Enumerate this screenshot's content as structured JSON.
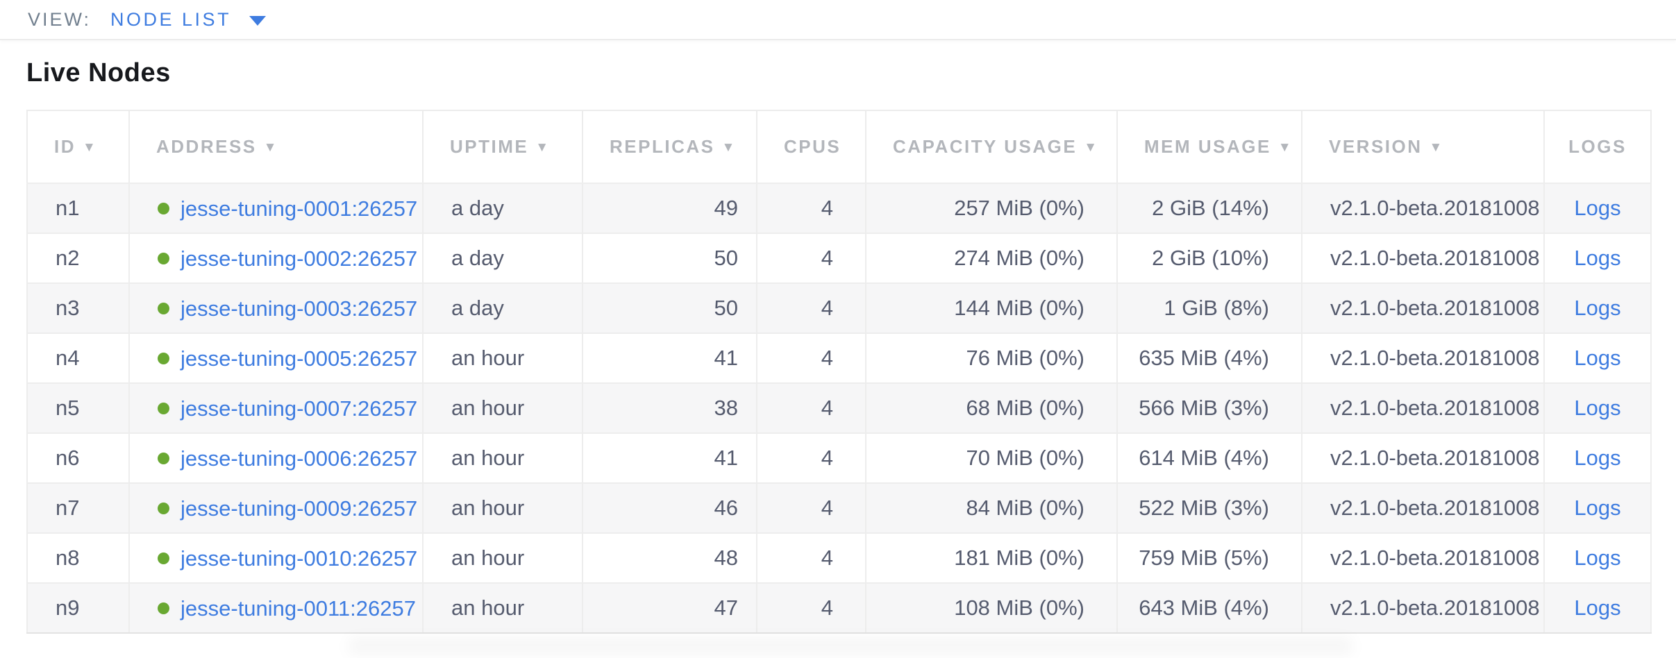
{
  "view_bar": {
    "label": "VIEW:",
    "selected": "NODE LIST"
  },
  "page": {
    "title": "Live Nodes"
  },
  "table": {
    "sort_indicator": "▼",
    "columns": [
      {
        "label": "ID",
        "sorted": true,
        "align": "left"
      },
      {
        "label": "ADDRESS",
        "sorted": true,
        "align": "left"
      },
      {
        "label": "UPTIME",
        "sorted": true,
        "align": "left"
      },
      {
        "label": "REPLICAS",
        "sorted": true,
        "align": "left"
      },
      {
        "label": "CPUS",
        "sorted": false,
        "align": "left"
      },
      {
        "label": "CAPACITY USAGE",
        "sorted": true,
        "align": "left"
      },
      {
        "label": "MEM USAGE",
        "sorted": true,
        "align": "left"
      },
      {
        "label": "VERSION",
        "sorted": true,
        "align": "left"
      },
      {
        "label": "LOGS",
        "sorted": false,
        "align": "center"
      }
    ],
    "rows": [
      {
        "id": "n1",
        "address": "jesse-tuning-0001:26257",
        "uptime": "a day",
        "replicas": "49",
        "cpus": "4",
        "capacity_usage": "257 MiB (0%)",
        "mem_usage": "2 GiB (14%)",
        "version": "v2.1.0-beta.20181008",
        "logs": "Logs"
      },
      {
        "id": "n2",
        "address": "jesse-tuning-0002:26257",
        "uptime": "a day",
        "replicas": "50",
        "cpus": "4",
        "capacity_usage": "274 MiB (0%)",
        "mem_usage": "2 GiB (10%)",
        "version": "v2.1.0-beta.20181008",
        "logs": "Logs"
      },
      {
        "id": "n3",
        "address": "jesse-tuning-0003:26257",
        "uptime": "a day",
        "replicas": "50",
        "cpus": "4",
        "capacity_usage": "144 MiB (0%)",
        "mem_usage": "1 GiB (8%)",
        "version": "v2.1.0-beta.20181008",
        "logs": "Logs"
      },
      {
        "id": "n4",
        "address": "jesse-tuning-0005:26257",
        "uptime": "an hour",
        "replicas": "41",
        "cpus": "4",
        "capacity_usage": "76 MiB (0%)",
        "mem_usage": "635 MiB (4%)",
        "version": "v2.1.0-beta.20181008",
        "logs": "Logs"
      },
      {
        "id": "n5",
        "address": "jesse-tuning-0007:26257",
        "uptime": "an hour",
        "replicas": "38",
        "cpus": "4",
        "capacity_usage": "68 MiB (0%)",
        "mem_usage": "566 MiB (3%)",
        "version": "v2.1.0-beta.20181008",
        "logs": "Logs"
      },
      {
        "id": "n6",
        "address": "jesse-tuning-0006:26257",
        "uptime": "an hour",
        "replicas": "41",
        "cpus": "4",
        "capacity_usage": "70 MiB (0%)",
        "mem_usage": "614 MiB (4%)",
        "version": "v2.1.0-beta.20181008",
        "logs": "Logs"
      },
      {
        "id": "n7",
        "address": "jesse-tuning-0009:26257",
        "uptime": "an hour",
        "replicas": "46",
        "cpus": "4",
        "capacity_usage": "84 MiB (0%)",
        "mem_usage": "522 MiB (3%)",
        "version": "v2.1.0-beta.20181008",
        "logs": "Logs"
      },
      {
        "id": "n8",
        "address": "jesse-tuning-0010:26257",
        "uptime": "an hour",
        "replicas": "48",
        "cpus": "4",
        "capacity_usage": "181 MiB (0%)",
        "mem_usage": "759 MiB (5%)",
        "version": "v2.1.0-beta.20181008",
        "logs": "Logs"
      },
      {
        "id": "n9",
        "address": "jesse-tuning-0011:26257",
        "uptime": "an hour",
        "replicas": "47",
        "cpus": "4",
        "capacity_usage": "108 MiB (0%)",
        "mem_usage": "643 MiB (4%)",
        "version": "v2.1.0-beta.20181008",
        "logs": "Logs"
      }
    ]
  },
  "colors": {
    "link_blue": "#3e7ce0",
    "live_node_green": "#69a832",
    "header_gray": "#b3b6bb",
    "text_slate": "#555b6e"
  }
}
